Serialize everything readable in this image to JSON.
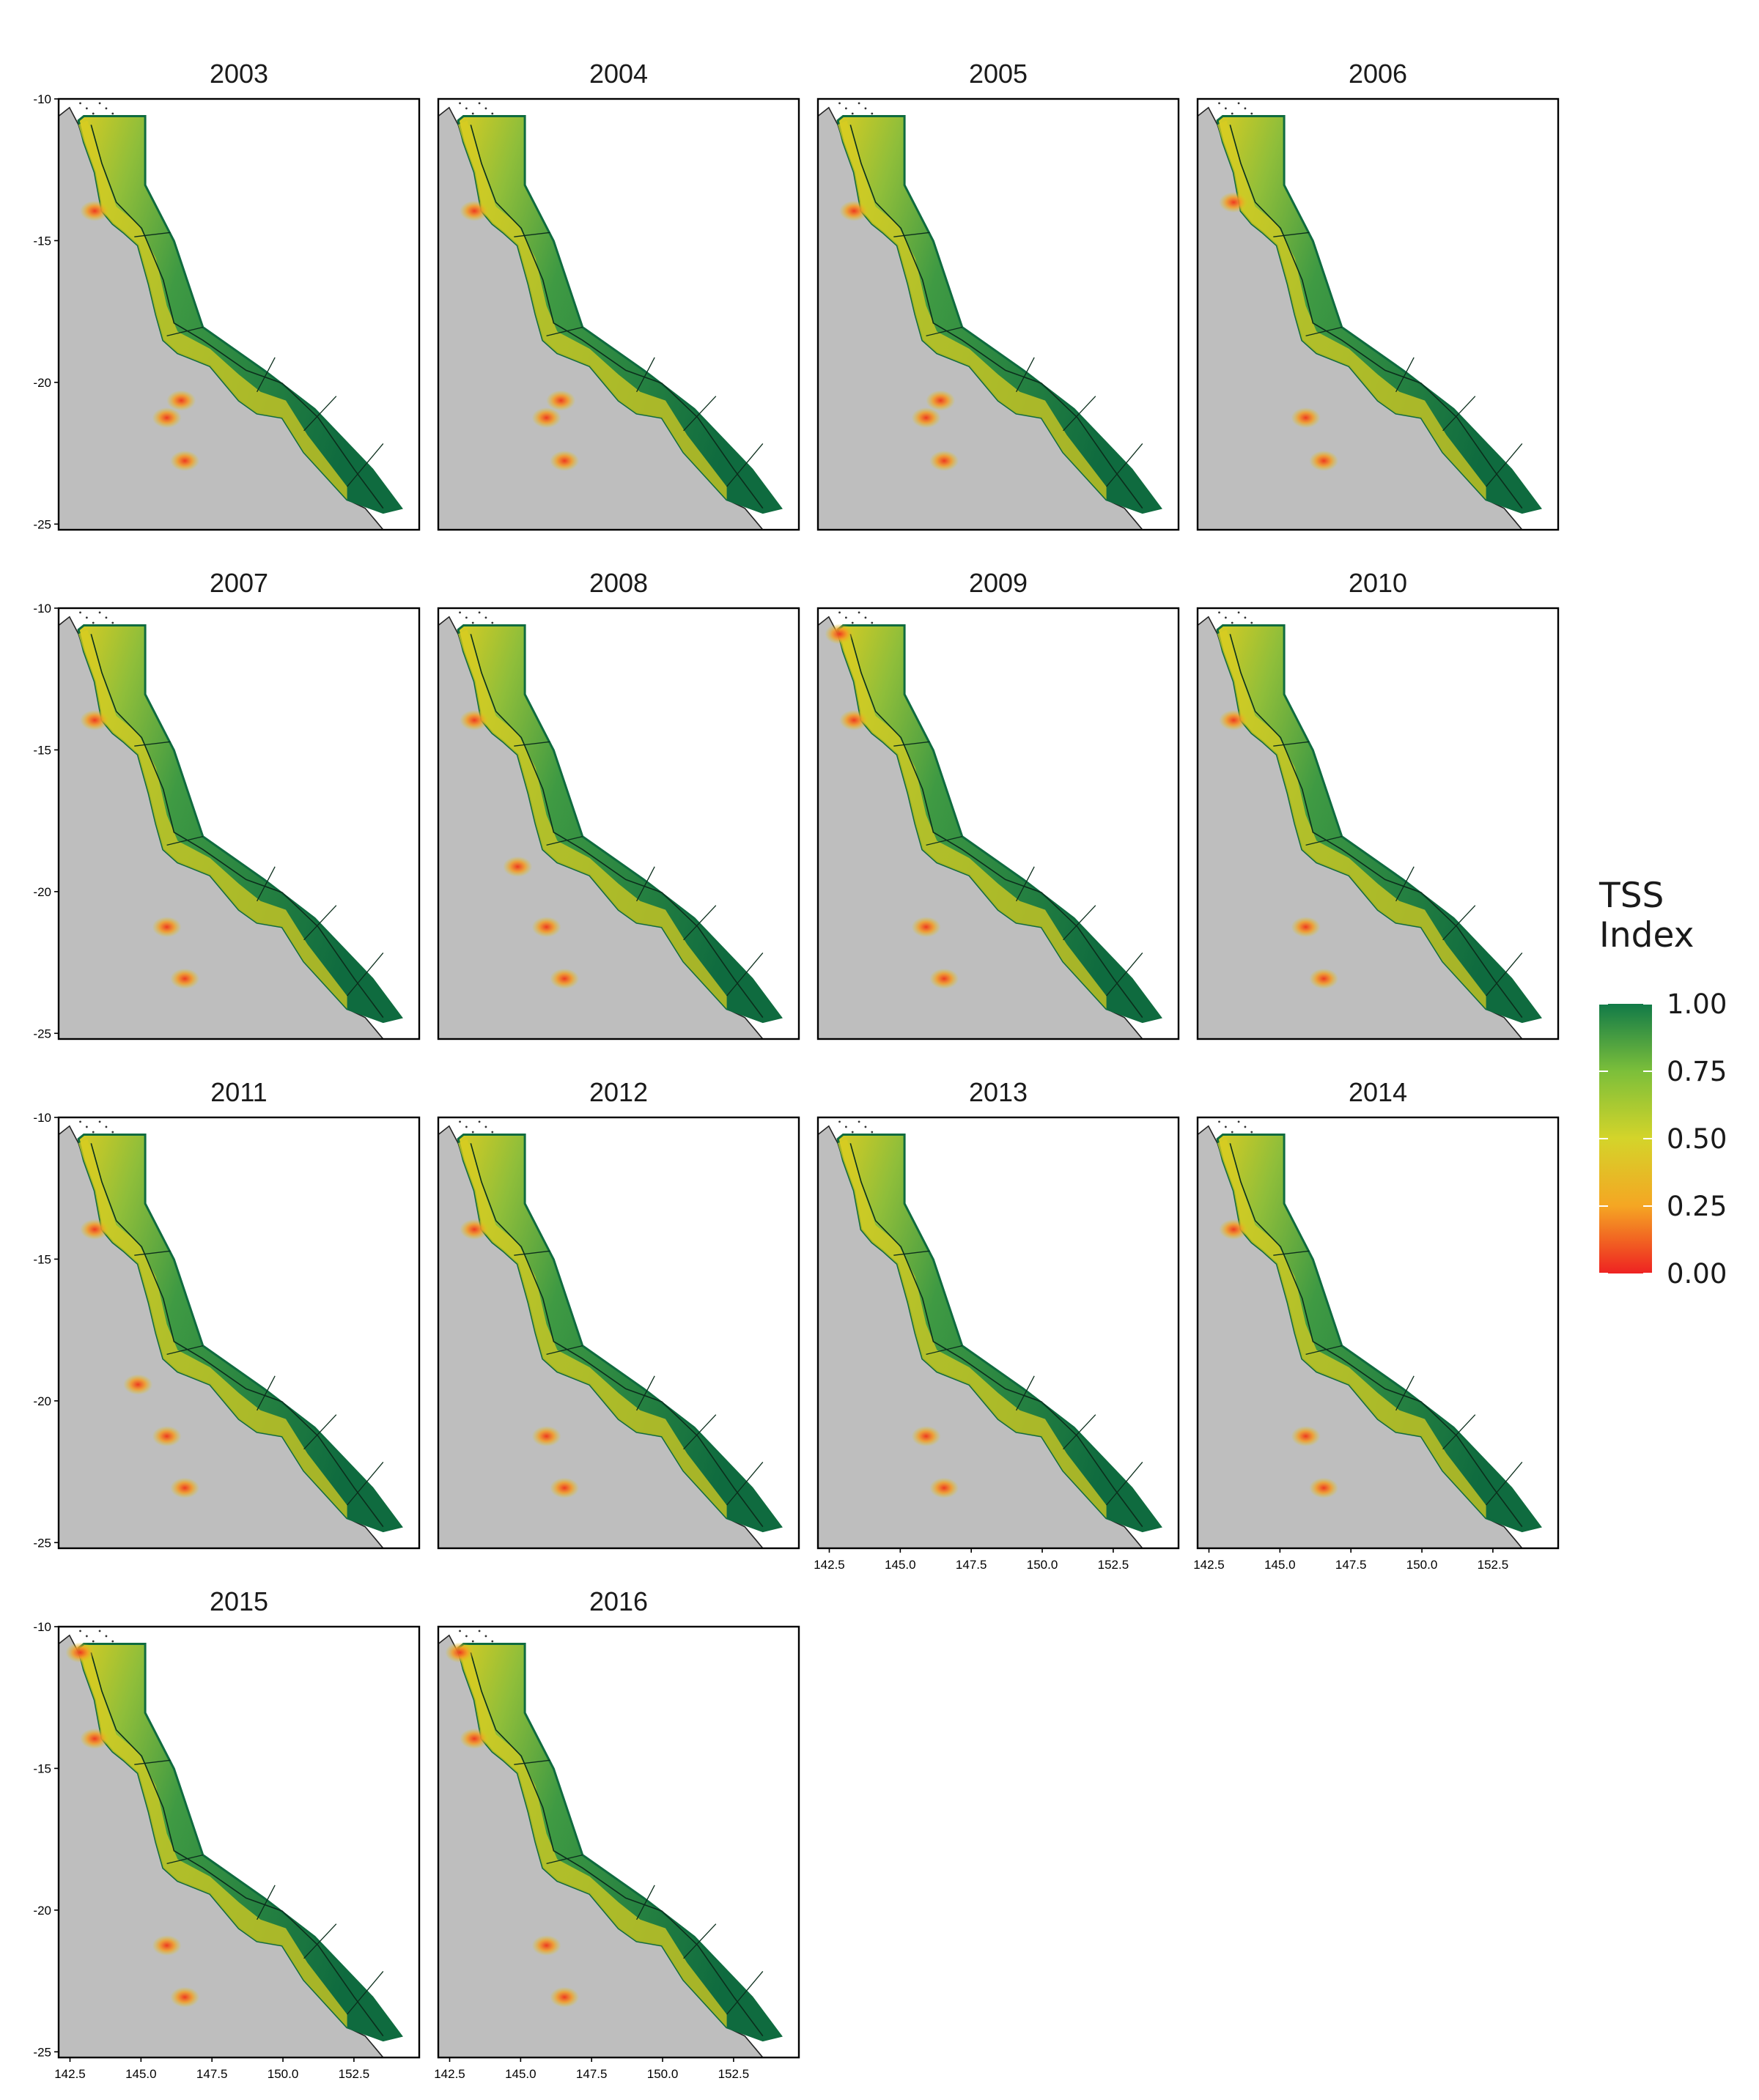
{
  "panels": [
    {
      "year": "2003",
      "hotspots": [
        [
          0.1,
          0.26
        ],
        [
          0.3,
          0.74
        ],
        [
          0.35,
          0.84
        ],
        [
          0.34,
          0.7
        ]
      ]
    },
    {
      "year": "2004",
      "hotspots": [
        [
          0.1,
          0.26
        ],
        [
          0.3,
          0.74
        ],
        [
          0.35,
          0.84
        ],
        [
          0.34,
          0.7
        ]
      ]
    },
    {
      "year": "2005",
      "hotspots": [
        [
          0.1,
          0.26
        ],
        [
          0.3,
          0.74
        ],
        [
          0.35,
          0.84
        ],
        [
          0.34,
          0.7
        ]
      ]
    },
    {
      "year": "2006",
      "hotspots": [
        [
          0.1,
          0.24
        ],
        [
          0.3,
          0.74
        ],
        [
          0.35,
          0.84
        ]
      ]
    },
    {
      "year": "2007",
      "hotspots": [
        [
          0.1,
          0.26
        ],
        [
          0.3,
          0.74
        ],
        [
          0.35,
          0.86
        ]
      ]
    },
    {
      "year": "2008",
      "hotspots": [
        [
          0.1,
          0.26
        ],
        [
          0.3,
          0.74
        ],
        [
          0.35,
          0.86
        ],
        [
          0.22,
          0.6
        ]
      ]
    },
    {
      "year": "2009",
      "hotspots": [
        [
          0.06,
          0.06
        ],
        [
          0.1,
          0.26
        ],
        [
          0.3,
          0.74
        ],
        [
          0.35,
          0.86
        ]
      ]
    },
    {
      "year": "2010",
      "hotspots": [
        [
          0.1,
          0.26
        ],
        [
          0.3,
          0.74
        ],
        [
          0.35,
          0.86
        ]
      ]
    },
    {
      "year": "2011",
      "hotspots": [
        [
          0.1,
          0.26
        ],
        [
          0.3,
          0.74
        ],
        [
          0.35,
          0.86
        ],
        [
          0.22,
          0.62
        ]
      ]
    },
    {
      "year": "2012",
      "hotspots": [
        [
          0.1,
          0.26
        ],
        [
          0.3,
          0.74
        ],
        [
          0.35,
          0.86
        ]
      ]
    },
    {
      "year": "2013",
      "hotspots": [
        [
          0.3,
          0.74
        ],
        [
          0.35,
          0.86
        ]
      ]
    },
    {
      "year": "2014",
      "hotspots": [
        [
          0.1,
          0.26
        ],
        [
          0.3,
          0.74
        ],
        [
          0.35,
          0.86
        ]
      ]
    },
    {
      "year": "2015",
      "hotspots": [
        [
          0.06,
          0.06
        ],
        [
          0.1,
          0.26
        ],
        [
          0.3,
          0.74
        ],
        [
          0.35,
          0.86
        ]
      ]
    },
    {
      "year": "2016",
      "hotspots": [
        [
          0.06,
          0.06
        ],
        [
          0.1,
          0.26
        ],
        [
          0.3,
          0.74
        ],
        [
          0.35,
          0.86
        ]
      ]
    }
  ],
  "axes": {
    "y_ticks": [
      "-10",
      "-15",
      "-20",
      "-25"
    ],
    "y_values": [
      -10,
      -15,
      -20,
      -25
    ],
    "x_ticks": [
      "142.5",
      "145.0",
      "147.5",
      "150.0",
      "152.5"
    ],
    "x_values": [
      142.5,
      145.0,
      147.5,
      150.0,
      152.5
    ],
    "xlim": [
      142.1,
      154.8
    ],
    "ylim": [
      -25.2,
      -10.0
    ]
  },
  "legend": {
    "title_line1": "TSS",
    "title_line2": "Index",
    "labels": [
      "1.00",
      "0.75",
      "0.50",
      "0.25",
      "0.00"
    ],
    "values": [
      1.0,
      0.75,
      0.5,
      0.25,
      0.0
    ],
    "colors": [
      "#ee2222",
      "#f5a623",
      "#d4d42a",
      "#7cbf3a",
      "#117a48"
    ]
  },
  "map_colors": {
    "land": "#bebebe",
    "reef_deep": "#0f6b3f",
    "reef_mid": "#3f9a43",
    "reef_light": "#9ec63c",
    "nearshore": "#d8cc22",
    "hotspot": "#ee3a20"
  }
}
